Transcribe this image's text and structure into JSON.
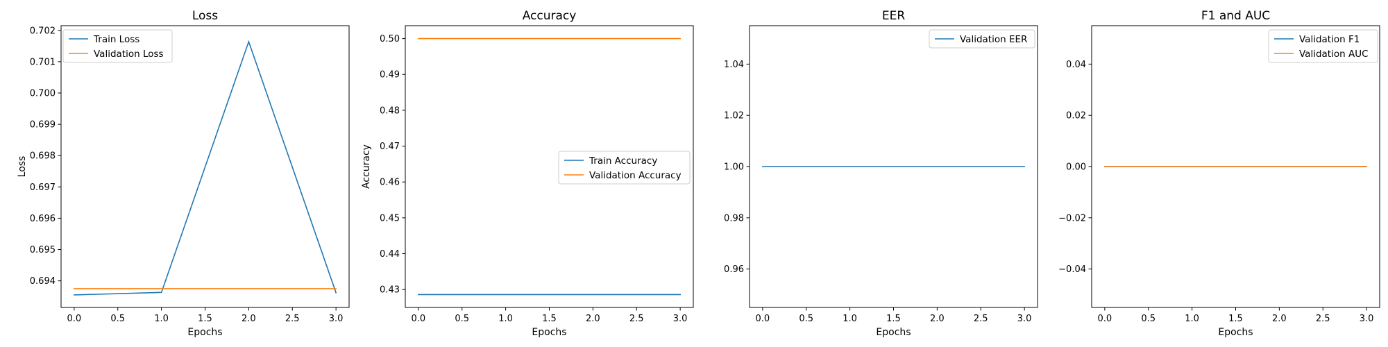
{
  "chart_data": [
    {
      "type": "line",
      "title": "Loss",
      "xlabel": "Epochs",
      "ylabel": "Loss",
      "xlim": [
        -0.15,
        3.15
      ],
      "ylim": [
        0.69315,
        0.70215
      ],
      "xticks": [
        0.0,
        0.5,
        1.0,
        1.5,
        2.0,
        2.5,
        3.0
      ],
      "xtick_labels": [
        "0.0",
        "0.5",
        "1.0",
        "1.5",
        "2.0",
        "2.5",
        "3.0"
      ],
      "yticks": [
        0.694,
        0.695,
        0.696,
        0.697,
        0.698,
        0.699,
        0.7,
        0.701,
        0.702
      ],
      "ytick_labels": [
        "0.694",
        "0.695",
        "0.696",
        "0.697",
        "0.698",
        "0.699",
        "0.700",
        "0.701",
        "0.702"
      ],
      "x": [
        0,
        1,
        2,
        3
      ],
      "series": [
        {
          "name": "Train Loss",
          "values": [
            0.69355,
            0.69363,
            0.70164,
            0.69362
          ],
          "color": "#1f77b4"
        },
        {
          "name": "Validation Loss",
          "values": [
            0.69375,
            0.69375,
            0.69375,
            0.69375
          ],
          "color": "#ff7f0e"
        }
      ],
      "legend": "upper-left",
      "grid": false
    },
    {
      "type": "line",
      "title": "Accuracy",
      "xlabel": "Epochs",
      "ylabel": "Accuracy",
      "xlim": [
        -0.15,
        3.15
      ],
      "ylim": [
        0.425,
        0.5036
      ],
      "xticks": [
        0.0,
        0.5,
        1.0,
        1.5,
        2.0,
        2.5,
        3.0
      ],
      "xtick_labels": [
        "0.0",
        "0.5",
        "1.0",
        "1.5",
        "2.0",
        "2.5",
        "3.0"
      ],
      "yticks": [
        0.43,
        0.44,
        0.45,
        0.46,
        0.47,
        0.48,
        0.49,
        0.5
      ],
      "ytick_labels": [
        "0.43",
        "0.44",
        "0.45",
        "0.46",
        "0.47",
        "0.48",
        "0.49",
        "0.50"
      ],
      "x": [
        0,
        1,
        2,
        3
      ],
      "series": [
        {
          "name": "Train Accuracy",
          "values": [
            0.4286,
            0.4286,
            0.4286,
            0.4286
          ],
          "color": "#1f77b4"
        },
        {
          "name": "Validation Accuracy",
          "values": [
            0.5,
            0.5,
            0.5,
            0.5
          ],
          "color": "#ff7f0e"
        }
      ],
      "legend": "center-right",
      "grid": false
    },
    {
      "type": "line",
      "title": "EER",
      "xlabel": "Epochs",
      "ylabel": "",
      "xlim": [
        -0.15,
        3.15
      ],
      "ylim": [
        0.945,
        1.055
      ],
      "xticks": [
        0.0,
        0.5,
        1.0,
        1.5,
        2.0,
        2.5,
        3.0
      ],
      "xtick_labels": [
        "0.0",
        "0.5",
        "1.0",
        "1.5",
        "2.0",
        "2.5",
        "3.0"
      ],
      "yticks": [
        0.96,
        0.98,
        1.0,
        1.02,
        1.04
      ],
      "ytick_labels": [
        "0.96",
        "0.98",
        "1.00",
        "1.02",
        "1.04"
      ],
      "x": [
        0,
        1,
        2,
        3
      ],
      "series": [
        {
          "name": "Validation EER",
          "values": [
            1.0,
            1.0,
            1.0,
            1.0
          ],
          "color": "#1f77b4"
        }
      ],
      "legend": "upper-right",
      "grid": false
    },
    {
      "type": "line",
      "title": "F1 and AUC",
      "xlabel": "Epochs",
      "ylabel": "",
      "xlim": [
        -0.15,
        3.15
      ],
      "ylim": [
        -0.055,
        0.055
      ],
      "xticks": [
        0.0,
        0.5,
        1.0,
        1.5,
        2.0,
        2.5,
        3.0
      ],
      "xtick_labels": [
        "0.0",
        "0.5",
        "1.0",
        "1.5",
        "2.0",
        "2.5",
        "3.0"
      ],
      "yticks": [
        -0.04,
        -0.02,
        0.0,
        0.02,
        0.04
      ],
      "ytick_labels": [
        "−0.04",
        "−0.02",
        "0.00",
        "0.02",
        "0.04"
      ],
      "x": [
        0,
        1,
        2,
        3
      ],
      "series": [
        {
          "name": "Validation F1",
          "values": [
            0.0,
            0.0,
            0.0,
            0.0
          ],
          "color": "#1f77b4"
        },
        {
          "name": "Validation AUC",
          "values": [
            0.0,
            0.0,
            0.0,
            0.0
          ],
          "color": "#ff7f0e"
        }
      ],
      "legend": "upper-right",
      "grid": false
    }
  ]
}
